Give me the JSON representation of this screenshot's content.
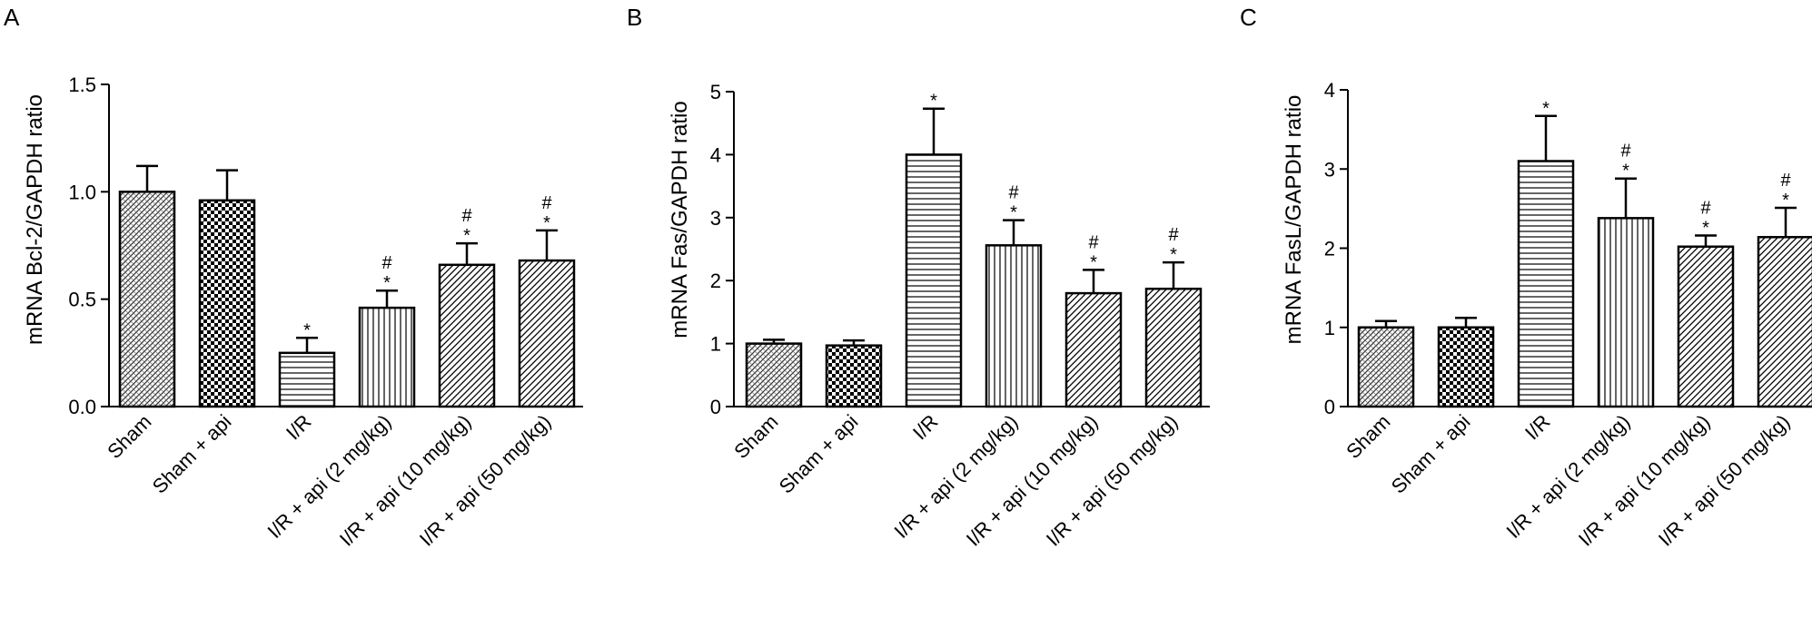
{
  "chart_data": [
    {
      "type": "bar",
      "panel": "A",
      "ylabel": "mRNA Bcl-2/GAPDH ratio",
      "ylim": [
        0,
        1.5
      ],
      "yticks": [
        0.0,
        0.5,
        1.0,
        1.5
      ],
      "ytick_labels": [
        "0.0",
        "0.5",
        "1.0",
        "1.5"
      ],
      "categories": [
        "Sham",
        "Sham + api",
        "I/R",
        "I/R + api (2 mg/kg)",
        "I/R + api (10 mg/kg)",
        "I/R + api (50 mg/kg)"
      ],
      "values": [
        1.0,
        0.96,
        0.25,
        0.46,
        0.66,
        0.68
      ],
      "errors": [
        0.12,
        0.14,
        0.07,
        0.08,
        0.1,
        0.14
      ],
      "annotations": [
        [],
        [],
        [
          "*"
        ],
        [
          "#",
          "*"
        ],
        [
          "#",
          "*"
        ],
        [
          "#",
          "*"
        ]
      ],
      "patterns": [
        "fine",
        "checker",
        "hlines",
        "vlines",
        "diag",
        "diag"
      ]
    },
    {
      "type": "bar",
      "panel": "B",
      "ylabel": "mRNA Fas/GAPDH ratio",
      "ylim": [
        0,
        5
      ],
      "yticks": [
        0,
        1,
        2,
        3,
        4,
        5
      ],
      "ytick_labels": [
        "0",
        "1",
        "2",
        "3",
        "4",
        "5"
      ],
      "categories": [
        "Sham",
        "Sham + api",
        "I/R",
        "I/R + api (2 mg/kg)",
        "I/R + api (10 mg/kg)",
        "I/R + api (50 mg/kg)"
      ],
      "values": [
        1.0,
        0.97,
        4.0,
        2.56,
        1.8,
        1.87
      ],
      "errors": [
        0.06,
        0.08,
        0.73,
        0.4,
        0.37,
        0.42
      ],
      "annotations": [
        [],
        [],
        [
          "*"
        ],
        [
          "#",
          "*"
        ],
        [
          "#",
          "*"
        ],
        [
          "#",
          "*"
        ]
      ],
      "patterns": [
        "fine",
        "checker",
        "hlines",
        "vlines",
        "diag",
        "diag"
      ]
    },
    {
      "type": "bar",
      "panel": "C",
      "ylabel": "mRNA FasL/GAPDH ratio",
      "ylim": [
        0,
        4
      ],
      "yticks": [
        0,
        1,
        2,
        3,
        4
      ],
      "ytick_labels": [
        "0",
        "1",
        "2",
        "3",
        "4"
      ],
      "categories": [
        "Sham",
        "Sham + api",
        "I/R",
        "I/R + api (2 mg/kg)",
        "I/R + api (10 mg/kg)",
        "I/R + api (50 mg/kg)"
      ],
      "values": [
        1.0,
        1.0,
        3.1,
        2.38,
        2.02,
        2.14
      ],
      "errors": [
        0.08,
        0.12,
        0.57,
        0.5,
        0.14,
        0.37
      ],
      "annotations": [
        [],
        [],
        [
          "*"
        ],
        [
          "#",
          "*"
        ],
        [
          "#",
          "*"
        ],
        [
          "#",
          "*"
        ]
      ],
      "patterns": [
        "fine",
        "checker",
        "hlines",
        "vlines",
        "diag",
        "diag"
      ]
    }
  ]
}
